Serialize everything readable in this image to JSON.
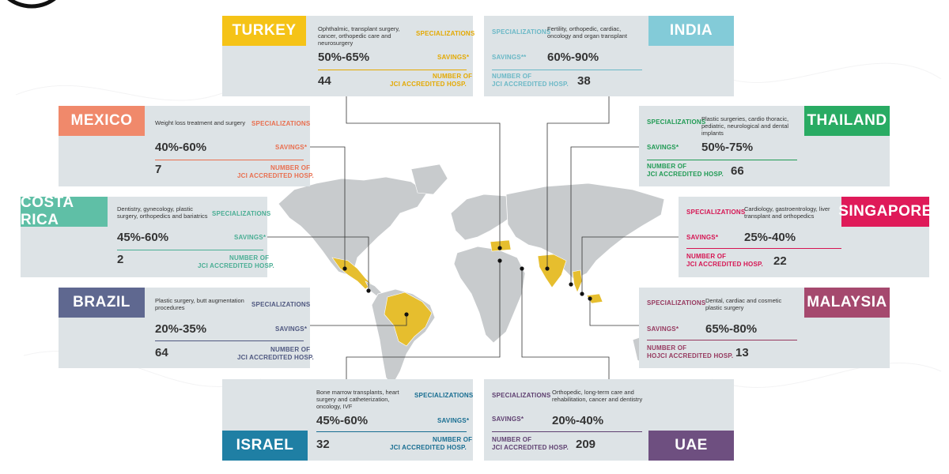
{
  "colors": {
    "turkey": "#f5c317",
    "india": "#83cbd8",
    "mexico": "#f0896b",
    "thailand": "#29ab63",
    "costa_rica": "#5fbfa6",
    "singapore": "#df1a59",
    "brazil": "#5f6890",
    "malaysia": "#a5496e",
    "israel": "#1f7fa4",
    "uae": "#6e4f80",
    "highlight": "#e6be2e",
    "land": "#c8cbcd"
  },
  "turkey": {
    "name": "TURKEY",
    "specializations": "Ophthalmic, transplant surgery, cancer, orthopedic care and neurosurgery",
    "spec_label": "SPECIALIZATIONS",
    "savings": "50%-65%",
    "savings_label": "SAVINGS*",
    "count": "44",
    "count_label_1": "NUMBER OF",
    "count_label_2": "JCI ACCREDITED HOSP."
  },
  "india": {
    "name": "INDIA",
    "specializations": "Fertility, orthopedic, cardiac, oncology and organ transplant",
    "spec_label": "SPECIALIZATIONS",
    "savings": "60%-90%",
    "savings_label": "SAVINGS**",
    "count": "38",
    "count_label_1": "NUMBER OF",
    "count_label_2": "JCI ACCREDITED HOSP."
  },
  "mexico": {
    "name": "MEXICO",
    "specializations": "Weight loss treatment and surgery",
    "spec_label": "SPECIALIZATIONS",
    "savings": "40%-60%",
    "savings_label": "SAVINGS*",
    "count": "7",
    "count_label_1": "NUMBER OF",
    "count_label_2": "JCI ACCREDITED HOSP."
  },
  "thailand": {
    "name": "THAILAND",
    "specializations": "Plastic surgeries, cardio thoracic, pediatric, neurological and dental implants",
    "spec_label": "SPECIALIZATIONS",
    "savings": "50%-75%",
    "savings_label": "SAVINGS*",
    "count": "66",
    "count_label_1": "NUMBER OF",
    "count_label_2": "JCI ACCREDITED HOSP."
  },
  "costa_rica": {
    "name": "COSTA RICA",
    "specializations": "Dentistry, gynecology, plastic surgery, orthopedics and bariatrics",
    "spec_label": "SPECIALIZATIONS",
    "savings": "45%-60%",
    "savings_label": "SAVINGS*",
    "count": "2",
    "count_label_1": "NUMBER OF",
    "count_label_2": "JCI ACCREDITED HOSP."
  },
  "singapore": {
    "name": "SINGAPORE",
    "specializations": "Cardiology, gastroentrology, liver transplant and orthopedics",
    "spec_label": "SPECIALIZATIONS",
    "savings": "25%-40%",
    "savings_label": "SAVINGS*",
    "count": "22",
    "count_label_1": "NUMBER OF",
    "count_label_2": "JCI ACCREDITED HOSP."
  },
  "brazil": {
    "name": "BRAZIL",
    "specializations": "Plastic surgery, butt augmentation procedures",
    "spec_label": "SPECIALIZATIONS",
    "savings": "20%-35%",
    "savings_label": "SAVINGS*",
    "count": "64",
    "count_label_1": "NUMBER OF",
    "count_label_2": "JCI ACCREDITED HOSP."
  },
  "malaysia": {
    "name": "MALAYSIA",
    "specializations": "Dental, cardiac and cosmetic plastic surgery",
    "spec_label": "SPECIALIZATIONS",
    "savings": "65%-80%",
    "savings_label": "SAVINGS*",
    "count": "13",
    "count_label_1": "NUMBER OF",
    "count_label_2": "HOJCI ACCREDITED HOSP."
  },
  "israel": {
    "name": "ISRAEL",
    "specializations": "Bone marrow transplants, heart surgery and catheterization, oncology, IVF",
    "spec_label": "SPECIALIZATIONS",
    "savings": "45%-60%",
    "savings_label": "SAVINGS*",
    "count": "32",
    "count_label_1": "NUMBER OF",
    "count_label_2": "JCI ACCREDITED HOSP."
  },
  "uae": {
    "name": "UAE",
    "specializations": "Orthopedic, long-term care and rehabilitation, cancer and dentistry",
    "spec_label": "SPECIALIZATIONS",
    "savings": "20%-40%",
    "savings_label": "SAVINGS*",
    "count": "209",
    "count_label_1": "NUMBER OF",
    "count_label_2": "JCI ACCREDITED HOSP."
  }
}
